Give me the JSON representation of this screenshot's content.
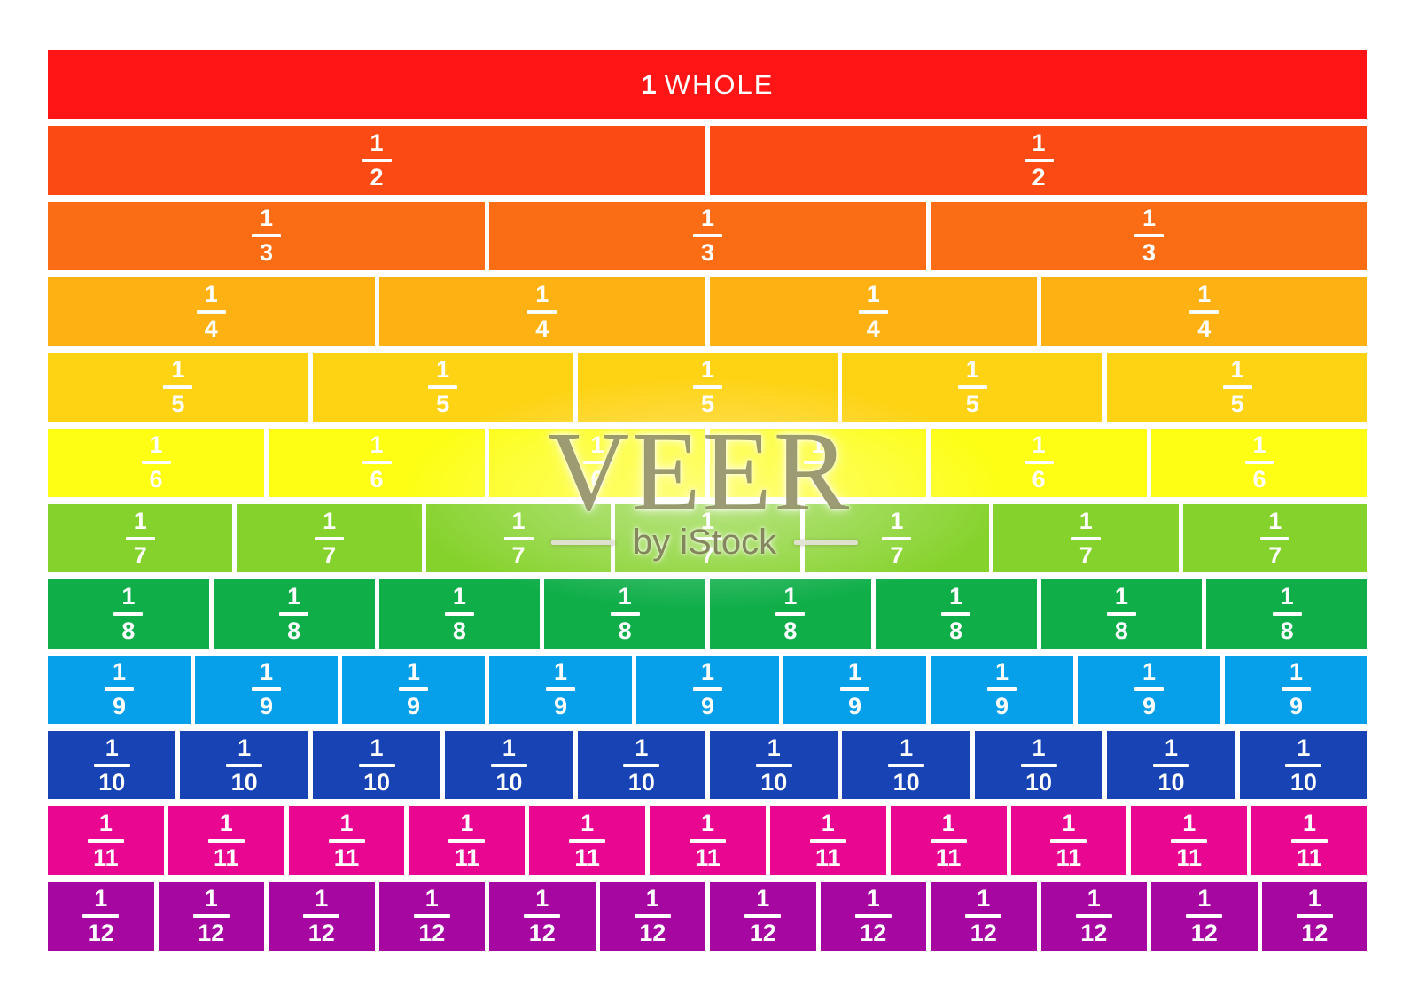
{
  "page": {
    "background": "#ffffff"
  },
  "title_row": {
    "bold": "1",
    "rest": "WHOLE",
    "full_label": "1 WHOLE"
  },
  "rows": [
    {
      "id": "whole",
      "type": "whole",
      "parts": 1,
      "label": "1 WHOLE",
      "color": "#FF1515"
    },
    {
      "id": "halves",
      "type": "fraction",
      "parts": 2,
      "numerator": "1",
      "denominator": "2",
      "color": "#FB4A13"
    },
    {
      "id": "thirds",
      "type": "fraction",
      "parts": 3,
      "numerator": "1",
      "denominator": "3",
      "color": "#FA6D15"
    },
    {
      "id": "fourths",
      "type": "fraction",
      "parts": 4,
      "numerator": "1",
      "denominator": "4",
      "color": "#FEB112"
    },
    {
      "id": "fifths",
      "type": "fraction",
      "parts": 5,
      "numerator": "1",
      "denominator": "5",
      "color": "#FED314"
    },
    {
      "id": "sixths",
      "type": "fraction",
      "parts": 6,
      "numerator": "1",
      "denominator": "6",
      "color": "#FDFE13"
    },
    {
      "id": "sevenths",
      "type": "fraction",
      "parts": 7,
      "numerator": "1",
      "denominator": "7",
      "color": "#86D22C"
    },
    {
      "id": "eighths",
      "type": "fraction",
      "parts": 8,
      "numerator": "1",
      "denominator": "8",
      "color": "#0FAE49"
    },
    {
      "id": "ninths",
      "type": "fraction",
      "parts": 9,
      "numerator": "1",
      "denominator": "9",
      "color": "#05A0E9"
    },
    {
      "id": "tenths",
      "type": "fraction",
      "parts": 10,
      "numerator": "1",
      "denominator": "10",
      "color": "#1743B5"
    },
    {
      "id": "elevenths",
      "type": "fraction",
      "parts": 11,
      "numerator": "1",
      "denominator": "11",
      "color": "#E90792"
    },
    {
      "id": "twelfths",
      "type": "fraction",
      "parts": 12,
      "numerator": "1",
      "denominator": "12",
      "color": "#A607A0"
    }
  ],
  "watermark": {
    "brand": "VEER",
    "byline": "by iStock",
    "brand_color": "rgba(96,94,34,0.62)"
  }
}
